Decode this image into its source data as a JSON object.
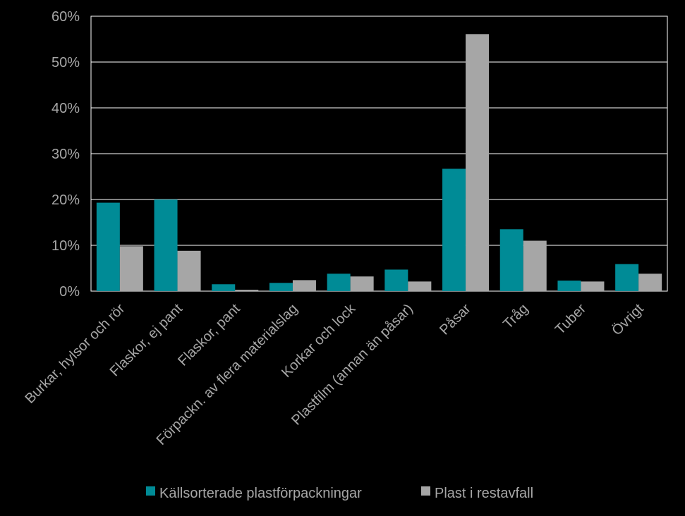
{
  "chart_data": {
    "type": "bar",
    "categories": [
      "Burkar, hylsor och rör",
      "Flaskor, ej pant",
      "Flaskor, pant",
      "Förpackn. av flera materialslag",
      "Korkar och lock",
      "Plastfilm (annan än påsar)",
      "Påsar",
      "Tråg",
      "Tuber",
      "Övrigt"
    ],
    "series": [
      {
        "name": "Källsorterade plastförpackningar",
        "color": "#008b96",
        "values": [
          19.3,
          20.0,
          1.5,
          1.8,
          3.8,
          4.7,
          26.7,
          13.5,
          2.3,
          5.9
        ]
      },
      {
        "name": "Plast i restavfall",
        "color": "#a6a6a6",
        "values": [
          9.8,
          8.8,
          0.3,
          2.4,
          3.2,
          2.1,
          56.1,
          11.0,
          2.1,
          3.8
        ]
      }
    ],
    "y_ticks": [
      "0%",
      "10%",
      "20%",
      "30%",
      "40%",
      "50%",
      "60%"
    ],
    "ylim": [
      0,
      60
    ],
    "grid": true,
    "legend_position": "bottom"
  }
}
